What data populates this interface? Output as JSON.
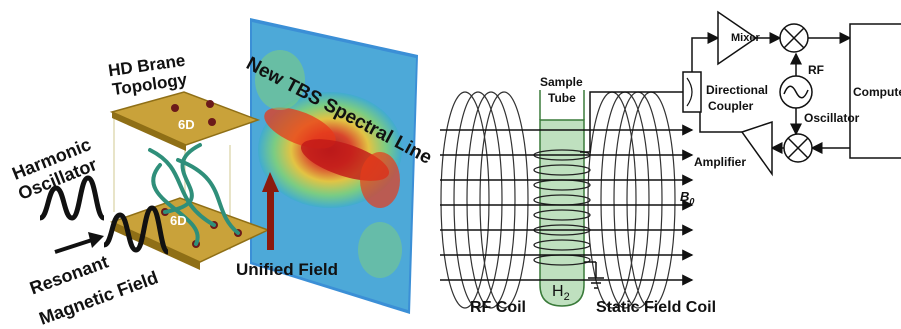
{
  "left_panel": {
    "brane_topology": [
      "HD Brane",
      "Topology"
    ],
    "spectral_line": "New TBS Spectral Line",
    "harmonic_oscillator": [
      "Harmonic",
      "Oscillator"
    ],
    "resonant_field": [
      "Resonant",
      "Magnetic Field"
    ],
    "unified_field": "Unified Field",
    "plate_top": "6D",
    "plate_bottom": "6D"
  },
  "right_panel": {
    "sample_tube": [
      "Sample",
      "Tube"
    ],
    "directional_coupler": [
      "Directional",
      "Coupler"
    ],
    "mixer": "Mixer",
    "rf": "RF",
    "oscillator": "Oscillator",
    "amplifier": "Amplifier",
    "computer": "Compute",
    "b0": "B",
    "b0_sub": "0",
    "h2": "H",
    "h2_sub": "2",
    "rf_coil": "RF Coil",
    "static_field_coil": "Static Field Coil"
  },
  "colors": {
    "plate": "#c9a23a",
    "plate_dark": "#8f6f16",
    "strand": "#2f8f7a",
    "arrow_red": "#8b1a0e",
    "tube_fill": "#bfe0bf",
    "tube_stroke": "#3a7a3a"
  }
}
